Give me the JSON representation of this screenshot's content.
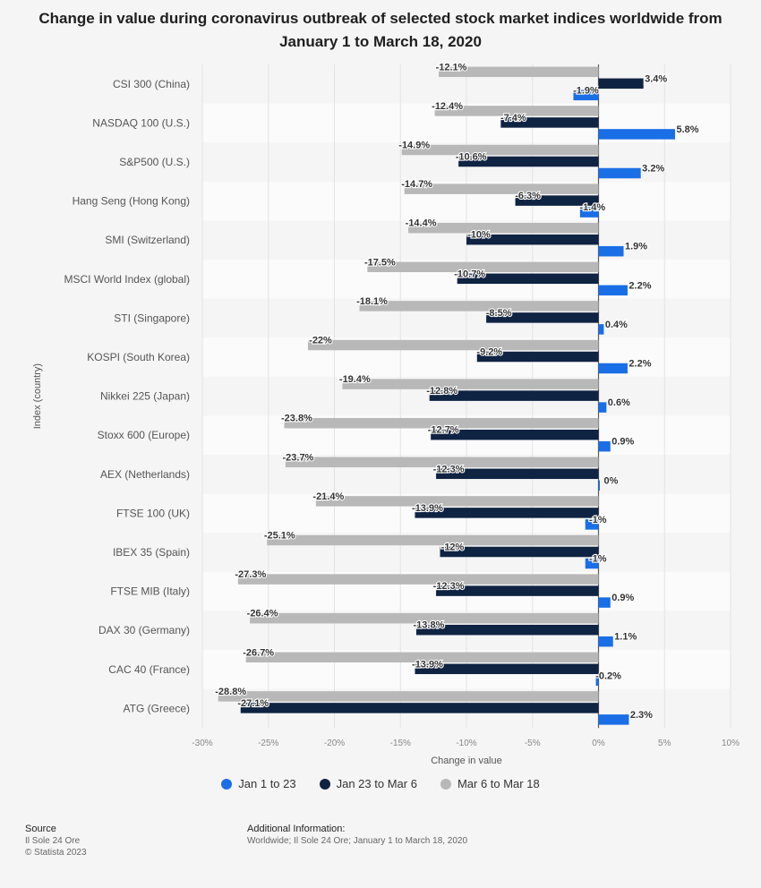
{
  "title": "Change in value during coronavirus outbreak of selected stock market indices worldwide from January 1 to March 18, 2020",
  "chart_data": {
    "type": "bar",
    "orientation": "horizontal",
    "title": "Change in value during coronavirus outbreak of selected stock market indices worldwide from January 1 to March 18, 2020",
    "xlabel": "Change in value",
    "ylabel": "Index (country)",
    "xlim": [
      -30,
      10
    ],
    "ticks": [
      -30,
      -25,
      -20,
      -15,
      -10,
      -5,
      0,
      5,
      10
    ],
    "tick_labels": [
      "-30%",
      "-25%",
      "-20%",
      "-15%",
      "-10%",
      "-5%",
      "0%",
      "5%",
      "10%"
    ],
    "categories": [
      "CSI 300 (China)",
      "NASDAQ 100 (U.S.)",
      "S&P500 (U.S.)",
      "Hang Seng (Hong Kong)",
      "SMI (Switzerland)",
      "MSCI World Index (global)",
      "STI (Singapore)",
      "KOSPI (South Korea)",
      "Nikkei 225 (Japan)",
      "Stoxx 600 (Europe)",
      "AEX (Netherlands)",
      "FTSE 100 (UK)",
      "IBEX 35 (Spain)",
      "FTSE MIB (Italy)",
      "DAX 30 (Germany)",
      "CAC 40 (France)",
      "ATG (Greece)"
    ],
    "series": [
      {
        "name": "Mar 6 to Mar 18",
        "color": "#b8b8b8",
        "values": [
          -12.1,
          -12.4,
          -14.9,
          -14.7,
          -14.4,
          -17.5,
          -18.1,
          -22,
          -19.4,
          -23.8,
          -23.7,
          -21.4,
          -25.1,
          -27.3,
          -26.4,
          -26.7,
          -28.8
        ],
        "labels": [
          "-12.1%",
          "-12.4%",
          "-14.9%",
          "-14.7%",
          "-14.4%",
          "-17.5%",
          "-18.1%",
          "-22%",
          "-19.4%",
          "-23.8%",
          "-23.7%",
          "-21.4%",
          "-25.1%",
          "-27.3%",
          "-26.4%",
          "-26.7%",
          "-28.8%"
        ]
      },
      {
        "name": "Jan 23 to Mar 6",
        "color": "#0f2343",
        "values": [
          3.4,
          -7.4,
          -10.6,
          -6.3,
          -10,
          -10.7,
          -8.5,
          -9.2,
          -12.8,
          -12.7,
          -12.3,
          -13.9,
          -12,
          -12.3,
          -13.8,
          -13.9,
          -27.1
        ],
        "labels": [
          "3.4%",
          "-7.4%",
          "-10.6%",
          "-6.3%",
          "-10%",
          "-10.7%",
          "-8.5%",
          "-9.2%",
          "-12.8%",
          "-12.7%",
          "-12.3%",
          "-13.9%",
          "-12%",
          "-12.3%",
          "-13.8%",
          "-13.9%",
          "-27.1%"
        ]
      },
      {
        "name": "Jan 1 to 23",
        "color": "#1a6ee6",
        "values": [
          -1.9,
          5.8,
          3.2,
          -1.4,
          1.9,
          2.2,
          0.4,
          2.2,
          0.6,
          0.9,
          0,
          -1,
          -1,
          0.9,
          1.1,
          -0.2,
          2.3
        ],
        "labels": [
          "-1.9%",
          "5.8%",
          "3.2%",
          "-1.4%",
          "1.9%",
          "2.2%",
          "0.4%",
          "2.2%",
          "0.6%",
          "0.9%",
          "0%",
          "-1%",
          "-1%",
          "0.9%",
          "1.1%",
          "-0.2%",
          "2.3%"
        ]
      }
    ],
    "legend": [
      "Jan 1 to 23",
      "Jan 23 to Mar 6",
      "Mar 6 to Mar 18"
    ],
    "legend_position": "bottom",
    "grid": true
  },
  "legend": {
    "items": [
      {
        "label": "Jan 1 to 23",
        "color": "#1a6ee6"
      },
      {
        "label": "Jan 23 to Mar 6",
        "color": "#0f2343"
      },
      {
        "label": "Mar 6 to Mar 18",
        "color": "#b8b8b8"
      }
    ]
  },
  "footer": {
    "source_title": "Source",
    "source_line1": "Il Sole 24 Ore",
    "source_line2": "© Statista 2023",
    "info_title": "Additional Information:",
    "info_text": "Worldwide; Il Sole 24 Ore; January 1 to March 18, 2020"
  }
}
